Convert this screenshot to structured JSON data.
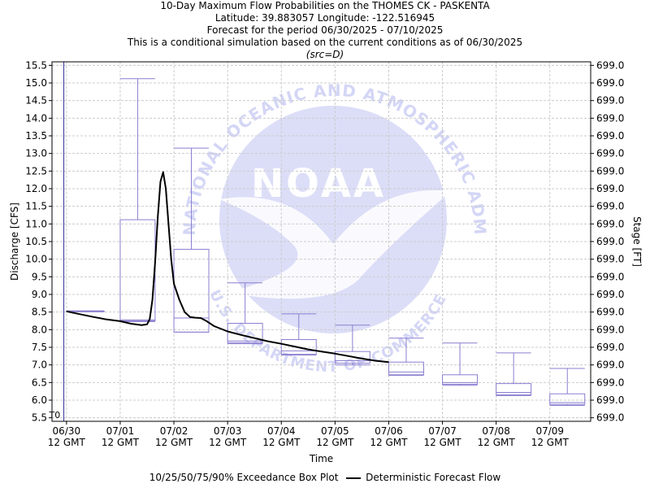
{
  "titles": {
    "line1": "10-Day Maximum Flow Probabilities on the THOMES CK - PASKENTA",
    "line2": "Latitude: 39.883057 Longitude: -122.516945",
    "line3": "Forecast for the period 06/30/2025 - 07/10/2025",
    "line4": "This is a conditional simulation based on the current conditions as of 06/30/2025",
    "line5": "(src=D)"
  },
  "watermark": {
    "logo_text": "NOAA",
    "ring_top": "NATIONAL OCEANIC AND ATMOSPHERIC ADMINISTRATION",
    "ring_bottom": "U.S. DEPARTMENT OF COMMERCE"
  },
  "colors": {
    "box": "#8a7fd0",
    "deterministic": "#000000",
    "t0_line": "#3030a0",
    "watermark": "#d4d6f6"
  },
  "legend": {
    "box_label": "10/25/50/75/90% Exceedance Box Plot",
    "line_label": "Deterministic Forecast Flow"
  },
  "chart_data": {
    "type": "box",
    "title": "10-Day Maximum Flow Probabilities on the THOMES CK - PASKENTA",
    "xlabel": "Time",
    "ylabel": "Discharge [CFS]",
    "y2label": "Stage [FT]",
    "ylim": [
      5.4,
      15.6
    ],
    "y_ticks": [
      5.5,
      6.0,
      6.5,
      7.0,
      7.5,
      8.0,
      8.5,
      9.0,
      9.5,
      10.0,
      10.5,
      11.0,
      11.5,
      12.0,
      12.5,
      13.0,
      13.5,
      14.0,
      14.5,
      15.0,
      15.5
    ],
    "y_tick_labels": [
      "5.5",
      "6.0",
      "6.5",
      "7.0",
      "7.5",
      "8.0",
      "8.5",
      "9.0",
      "9.5",
      "10.0",
      "10.5",
      "11.0",
      "11.5",
      "12.0",
      "12.5",
      "13.0",
      "13.5",
      "14.0",
      "14.5",
      "15.0",
      "15.5"
    ],
    "y2_tick_labels": [
      "699.0",
      "699.0",
      "699.0",
      "699.0",
      "699.0",
      "699.0",
      "699.0",
      "699.0",
      "699.0",
      "699.0",
      "699.0",
      "699.0",
      "699.0",
      "699.0",
      "699.0",
      "699.0",
      "699.0",
      "699.0",
      "699.0",
      "699.0",
      "699.0"
    ],
    "x_range_days": [
      -0.27,
      9.76
    ],
    "x_ticks": [
      {
        "day": 0,
        "date": "06/30",
        "time": "12 GMT"
      },
      {
        "day": 1,
        "date": "07/01",
        "time": "12 GMT"
      },
      {
        "day": 2,
        "date": "07/02",
        "time": "12 GMT"
      },
      {
        "day": 3,
        "date": "07/03",
        "time": "12 GMT"
      },
      {
        "day": 4,
        "date": "07/04",
        "time": "12 GMT"
      },
      {
        "day": 5,
        "date": "07/05",
        "time": "12 GMT"
      },
      {
        "day": 6,
        "date": "07/06",
        "time": "12 GMT"
      },
      {
        "day": 7,
        "date": "07/07",
        "time": "12 GMT"
      },
      {
        "day": 8,
        "date": "07/08",
        "time": "12 GMT"
      },
      {
        "day": 9,
        "date": "07/09",
        "time": "12 GMT"
      }
    ],
    "t0_label": "T0",
    "t0_day": -0.05,
    "boxes": [
      {
        "day_start": 0.0,
        "day_end": 0.7,
        "p10": 8.53,
        "p25": 8.53,
        "p50": 8.53,
        "p75": 8.53,
        "p90": 8.53
      },
      {
        "day_start": 1.0,
        "day_end": 1.65,
        "p10": 8.23,
        "p25": 8.25,
        "p50": 8.28,
        "p75": 11.12,
        "p90": 15.12
      },
      {
        "day_start": 2.0,
        "day_end": 2.65,
        "p10": 7.93,
        "p25": 7.93,
        "p50": 8.33,
        "p75": 10.28,
        "p90": 13.15
      },
      {
        "day_start": 3.0,
        "day_end": 3.65,
        "p10": 7.6,
        "p25": 7.63,
        "p50": 7.68,
        "p75": 8.18,
        "p90": 9.33
      },
      {
        "day_start": 4.0,
        "day_end": 4.65,
        "p10": 7.28,
        "p25": 7.3,
        "p50": 7.4,
        "p75": 7.72,
        "p90": 8.45
      },
      {
        "day_start": 5.0,
        "day_end": 5.65,
        "p10": 7.0,
        "p25": 7.05,
        "p50": 7.12,
        "p75": 7.38,
        "p90": 8.13
      },
      {
        "day_start": 6.0,
        "day_end": 6.65,
        "p10": 6.7,
        "p25": 6.72,
        "p50": 6.8,
        "p75": 7.08,
        "p90": 7.76
      },
      {
        "day_start": 7.0,
        "day_end": 7.65,
        "p10": 6.42,
        "p25": 6.45,
        "p50": 6.5,
        "p75": 6.72,
        "p90": 7.62
      },
      {
        "day_start": 8.0,
        "day_end": 8.65,
        "p10": 6.13,
        "p25": 6.15,
        "p50": 6.22,
        "p75": 6.47,
        "p90": 7.34
      },
      {
        "day_start": 9.0,
        "day_end": 9.65,
        "p10": 5.85,
        "p25": 5.88,
        "p50": 5.93,
        "p75": 6.18,
        "p90": 6.9
      }
    ],
    "deterministic": {
      "name": "Deterministic Forecast Flow",
      "x_days": [
        0.0,
        0.25,
        0.5,
        0.75,
        1.0,
        1.2,
        1.4,
        1.5,
        1.55,
        1.6,
        1.65,
        1.7,
        1.75,
        1.8,
        1.85,
        1.9,
        1.95,
        2.0,
        2.1,
        2.2,
        2.3,
        2.4,
        2.5,
        2.6,
        2.75,
        3.0,
        3.25,
        3.5,
        3.75,
        4.0,
        4.25,
        4.5,
        4.75,
        5.0,
        5.25,
        5.5,
        5.75,
        6.0
      ],
      "y": [
        8.52,
        8.44,
        8.36,
        8.29,
        8.24,
        8.17,
        8.13,
        8.15,
        8.3,
        8.85,
        9.9,
        11.2,
        12.2,
        12.47,
        12.0,
        11.0,
        10.0,
        9.3,
        8.85,
        8.5,
        8.36,
        8.34,
        8.33,
        8.25,
        8.1,
        7.95,
        7.85,
        7.76,
        7.67,
        7.6,
        7.52,
        7.44,
        7.38,
        7.32,
        7.25,
        7.18,
        7.12,
        7.08
      ]
    }
  }
}
